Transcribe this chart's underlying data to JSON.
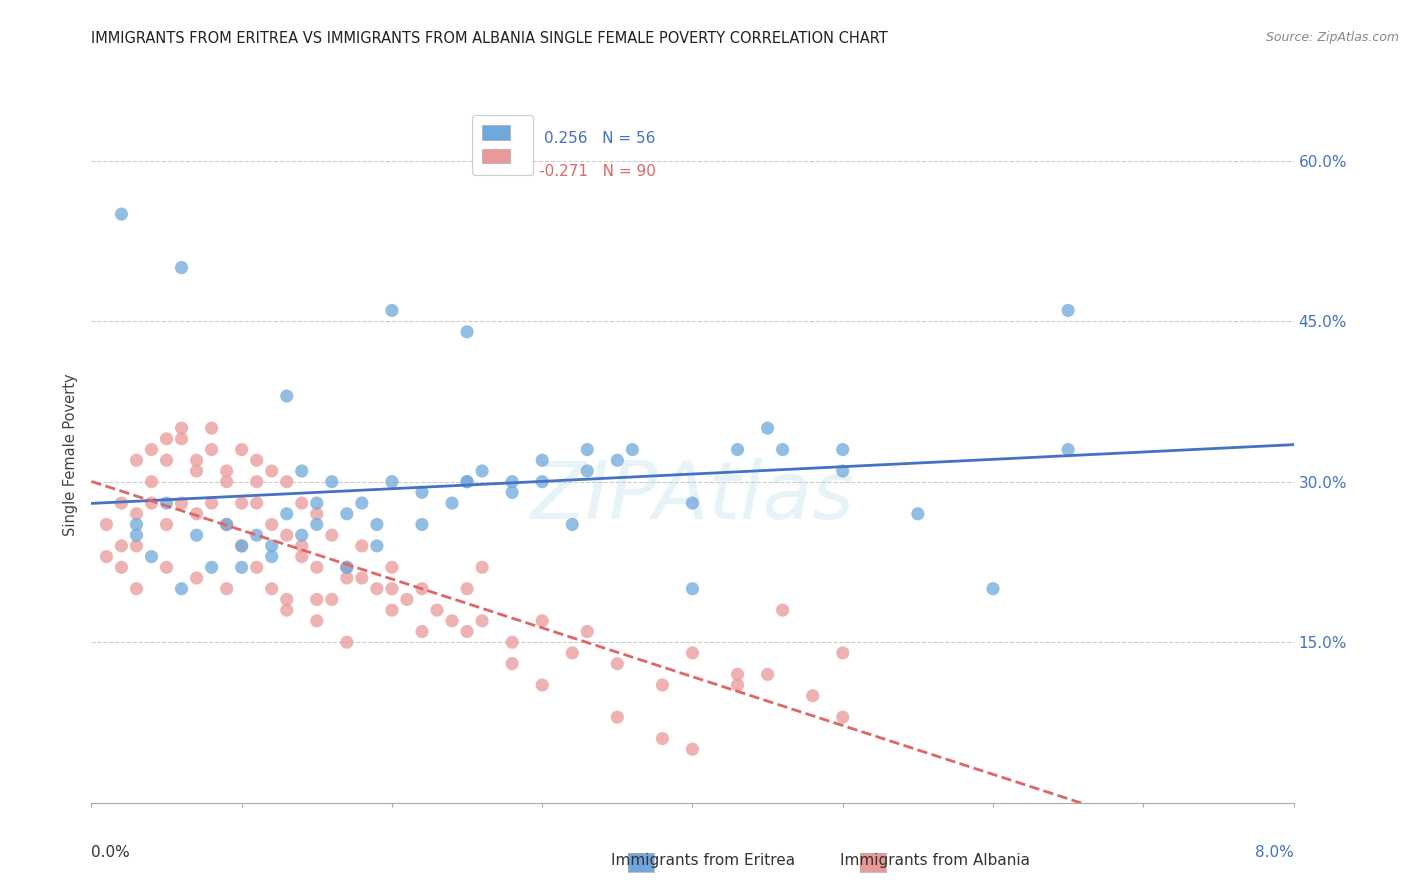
{
  "title": "IMMIGRANTS FROM ERITREA VS IMMIGRANTS FROM ALBANIA SINGLE FEMALE POVERTY CORRELATION CHART",
  "source": "Source: ZipAtlas.com",
  "ylabel": "Single Female Poverty",
  "eritrea_color": "#6fa8dc",
  "albania_color": "#ea9999",
  "eritrea_line_color": "#4472c4",
  "albania_line_color": "#e06666",
  "background_color": "#ffffff",
  "grid_color": "#cccccc",
  "x_min": 0.0,
  "x_max": 0.08,
  "y_min": 0.0,
  "y_max": 0.65,
  "eritrea_scatter_x": [
    0.003,
    0.005,
    0.007,
    0.008,
    0.009,
    0.01,
    0.011,
    0.012,
    0.013,
    0.014,
    0.014,
    0.015,
    0.016,
    0.017,
    0.018,
    0.019,
    0.02,
    0.022,
    0.024,
    0.025,
    0.026,
    0.028,
    0.03,
    0.032,
    0.033,
    0.035,
    0.04,
    0.043,
    0.046,
    0.05,
    0.003,
    0.004,
    0.006,
    0.01,
    0.012,
    0.015,
    0.017,
    0.019,
    0.022,
    0.025,
    0.028,
    0.03,
    0.033,
    0.036,
    0.04,
    0.045,
    0.05,
    0.055,
    0.06,
    0.065,
    0.002,
    0.006,
    0.013,
    0.02,
    0.025,
    0.065
  ],
  "eritrea_scatter_y": [
    0.26,
    0.28,
    0.25,
    0.22,
    0.26,
    0.24,
    0.25,
    0.23,
    0.27,
    0.25,
    0.31,
    0.28,
    0.3,
    0.27,
    0.28,
    0.26,
    0.3,
    0.29,
    0.28,
    0.3,
    0.31,
    0.3,
    0.3,
    0.26,
    0.31,
    0.32,
    0.28,
    0.33,
    0.33,
    0.31,
    0.25,
    0.23,
    0.2,
    0.22,
    0.24,
    0.26,
    0.22,
    0.24,
    0.26,
    0.3,
    0.29,
    0.32,
    0.33,
    0.33,
    0.2,
    0.35,
    0.33,
    0.27,
    0.2,
    0.33,
    0.55,
    0.5,
    0.38,
    0.46,
    0.44,
    0.46
  ],
  "albania_scatter_x": [
    0.001,
    0.001,
    0.002,
    0.002,
    0.003,
    0.003,
    0.004,
    0.004,
    0.005,
    0.005,
    0.006,
    0.006,
    0.007,
    0.007,
    0.008,
    0.008,
    0.009,
    0.009,
    0.01,
    0.01,
    0.011,
    0.011,
    0.012,
    0.012,
    0.013,
    0.013,
    0.014,
    0.014,
    0.015,
    0.015,
    0.016,
    0.017,
    0.018,
    0.019,
    0.02,
    0.021,
    0.022,
    0.023,
    0.025,
    0.026,
    0.028,
    0.03,
    0.032,
    0.035,
    0.038,
    0.04,
    0.043,
    0.045,
    0.048,
    0.05,
    0.002,
    0.003,
    0.004,
    0.005,
    0.006,
    0.007,
    0.008,
    0.009,
    0.01,
    0.011,
    0.012,
    0.013,
    0.014,
    0.015,
    0.016,
    0.017,
    0.018,
    0.02,
    0.022,
    0.024,
    0.026,
    0.028,
    0.03,
    0.033,
    0.035,
    0.038,
    0.04,
    0.043,
    0.046,
    0.05,
    0.003,
    0.005,
    0.007,
    0.009,
    0.011,
    0.013,
    0.015,
    0.017,
    0.02,
    0.025
  ],
  "albania_scatter_y": [
    0.26,
    0.23,
    0.28,
    0.24,
    0.27,
    0.24,
    0.28,
    0.3,
    0.32,
    0.26,
    0.34,
    0.28,
    0.31,
    0.27,
    0.35,
    0.28,
    0.3,
    0.26,
    0.33,
    0.28,
    0.32,
    0.28,
    0.31,
    0.26,
    0.3,
    0.25,
    0.28,
    0.23,
    0.27,
    0.22,
    0.25,
    0.22,
    0.24,
    0.2,
    0.22,
    0.19,
    0.2,
    0.18,
    0.2,
    0.17,
    0.15,
    0.17,
    0.14,
    0.13,
    0.11,
    0.14,
    0.11,
    0.12,
    0.1,
    0.14,
    0.22,
    0.32,
    0.33,
    0.34,
    0.35,
    0.32,
    0.33,
    0.31,
    0.24,
    0.3,
    0.2,
    0.18,
    0.24,
    0.17,
    0.19,
    0.15,
    0.21,
    0.18,
    0.16,
    0.17,
    0.22,
    0.13,
    0.11,
    0.16,
    0.08,
    0.06,
    0.05,
    0.12,
    0.18,
    0.08,
    0.2,
    0.22,
    0.21,
    0.2,
    0.22,
    0.19,
    0.19,
    0.21,
    0.2,
    0.16
  ]
}
